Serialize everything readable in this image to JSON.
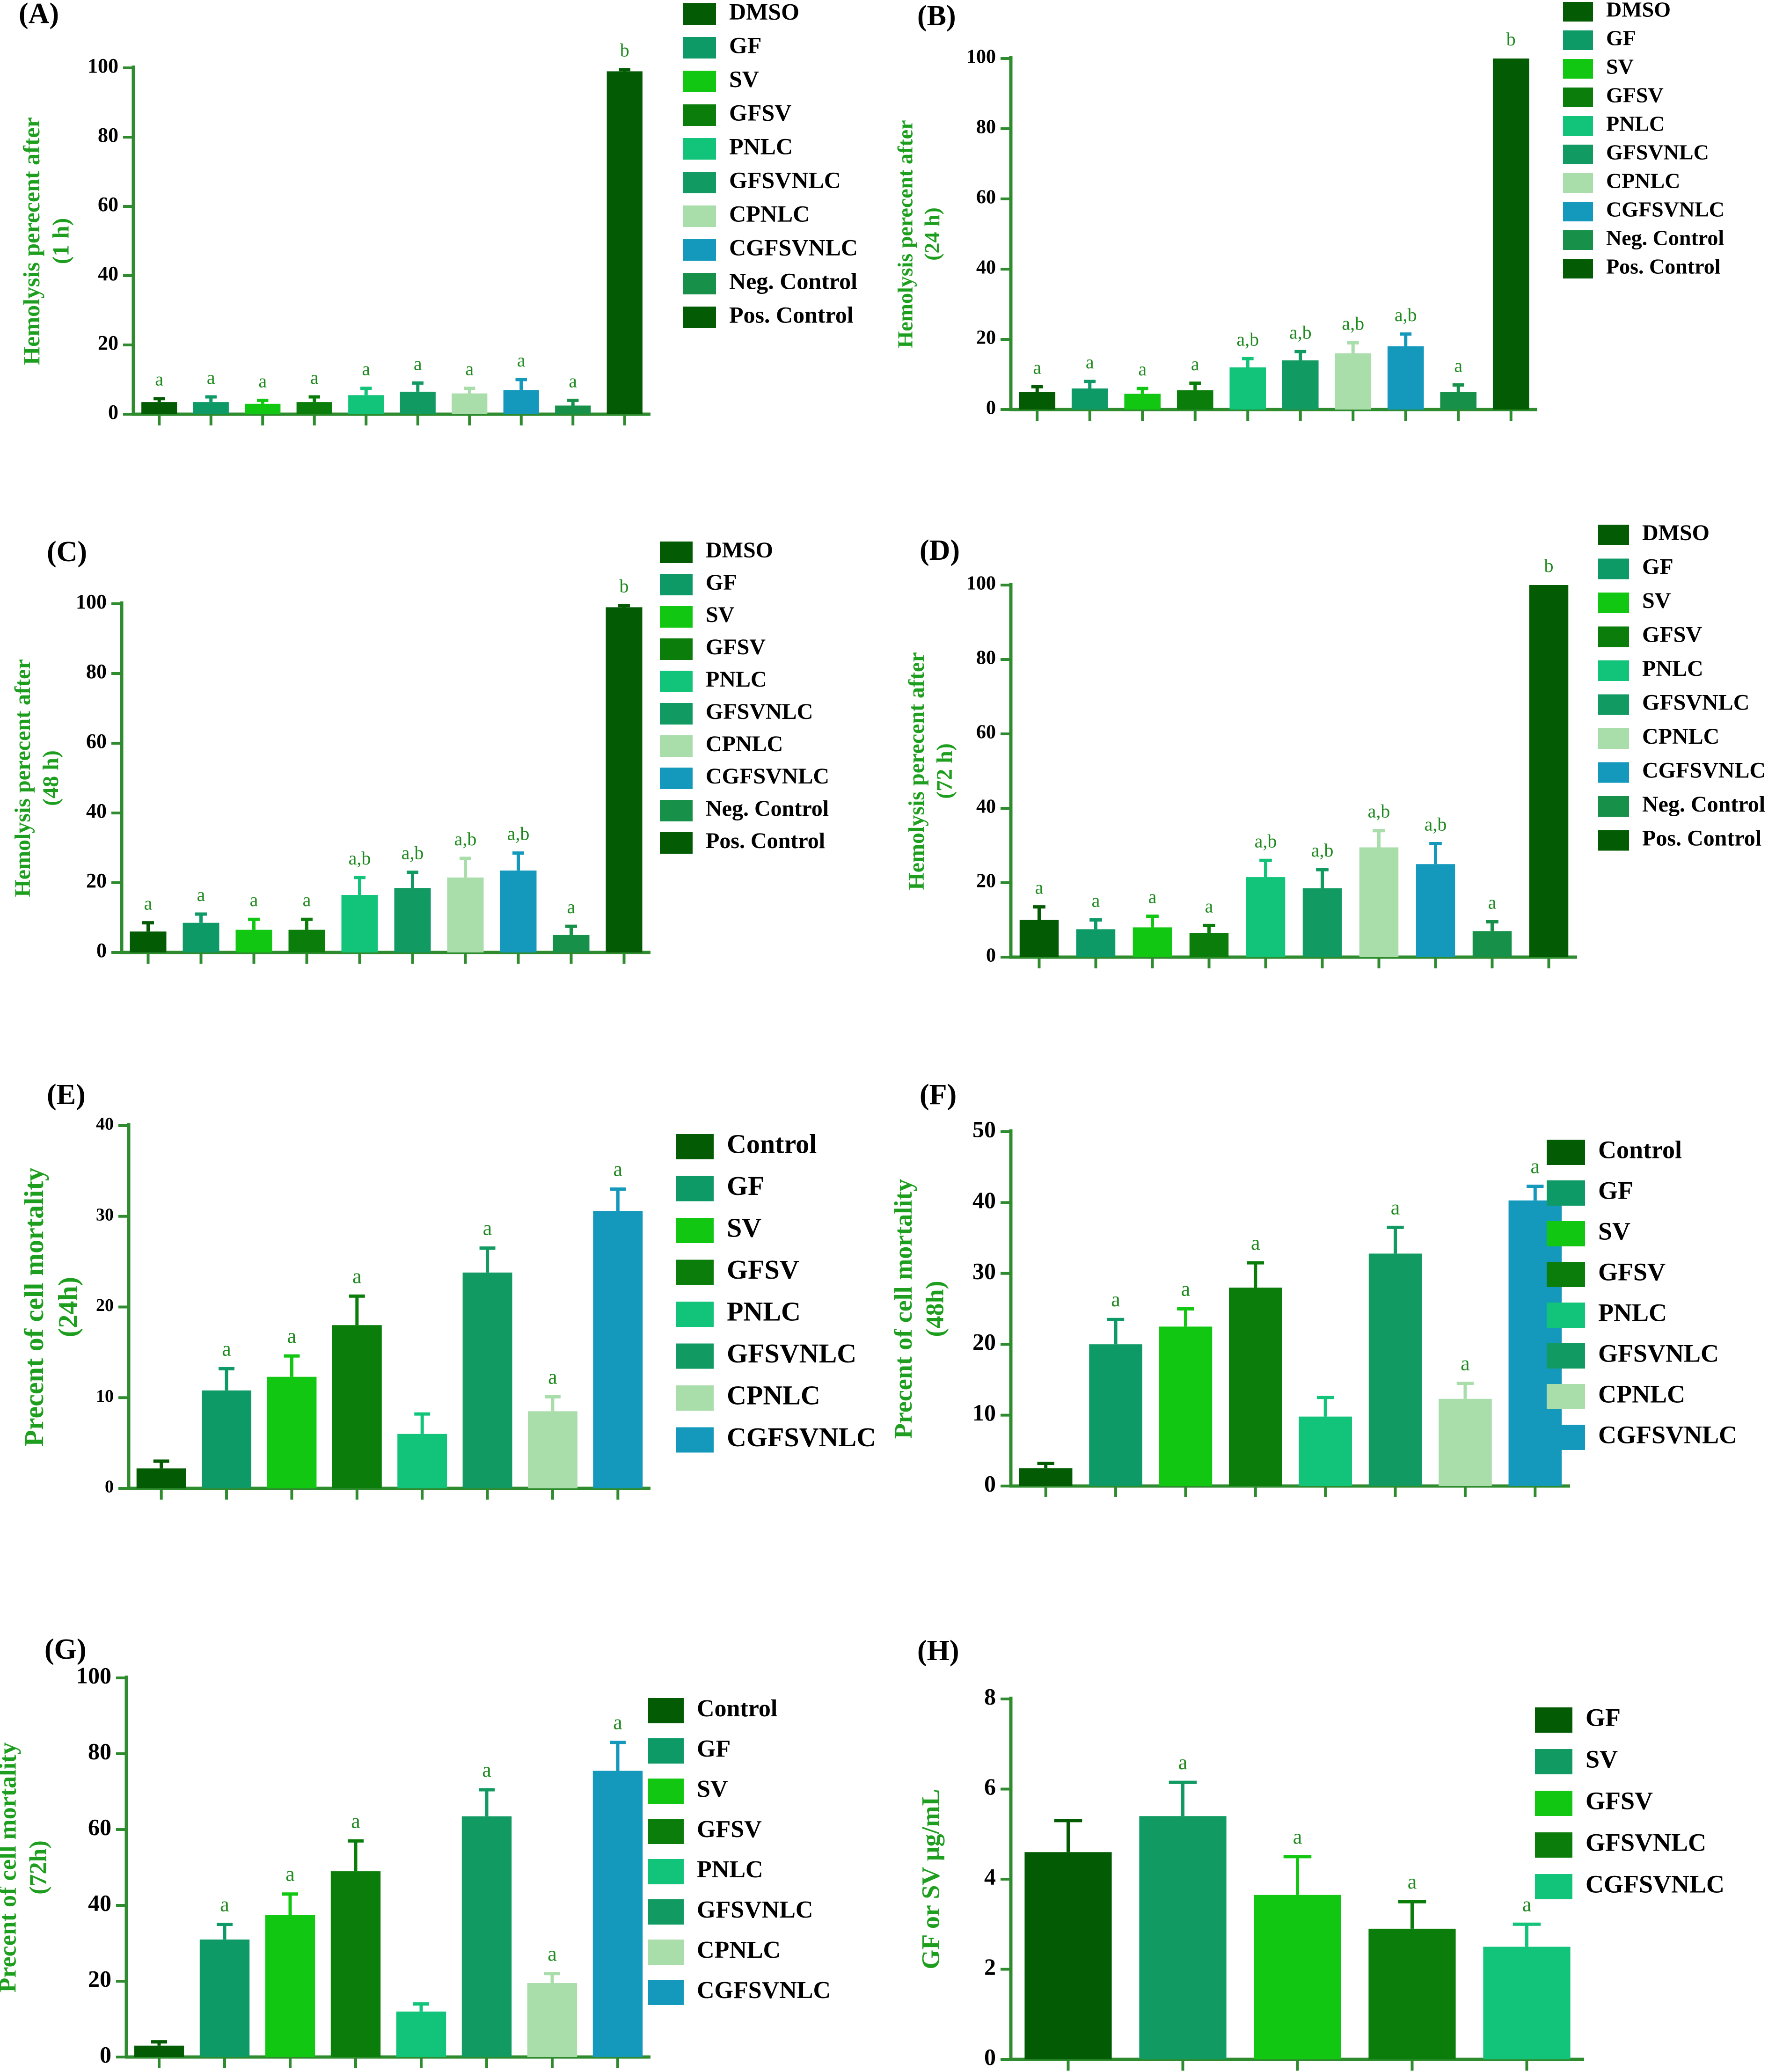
{
  "colors": {
    "axis": "#2E8B2E",
    "ylabel": "#1E9E1E",
    "letters": "#1F8A1F",
    "ticklabel": "#000000",
    "panel_label": "#000000",
    "DMSO": "#035B03",
    "Control": "#035B03",
    "GF": "#0E9A66",
    "SV": "#11C711",
    "GFSV": "#0A7D0A",
    "PNLC": "#12C37A",
    "GFSVNLC": "#129A63",
    "CPNLC": "#A9DDAA",
    "CGFSVNLC": "#1499BC",
    "Neg. Control": "#17914A",
    "Pos. Control": "#035B03"
  },
  "chart_data": [
    {
      "panel": "(A)",
      "type": "bar",
      "ylabel": [
        "Hemolysis perecent after",
        "(1 h)"
      ],
      "ylim": [
        0,
        100
      ],
      "yticks": [
        0,
        20,
        40,
        60,
        80,
        100
      ],
      "categories": [
        "DMSO",
        "GF",
        "SV",
        "GFSV",
        "PNLC",
        "GFSVNLC",
        "CPNLC",
        "CGFSVNLC",
        "Neg. Control",
        "Pos. Control"
      ],
      "values": [
        3.5,
        3.5,
        3.0,
        3.5,
        5.5,
        6.5,
        6.0,
        7.0,
        2.5,
        99
      ],
      "errors": [
        1.0,
        1.5,
        1.0,
        1.5,
        2.0,
        2.5,
        1.5,
        3.0,
        1.5,
        0.5
      ],
      "letters": [
        "a",
        "a",
        "a",
        "a",
        "a",
        "a",
        "a",
        "a",
        "a",
        "b"
      ],
      "legend": [
        "DMSO",
        "GF",
        "SV",
        "GFSV",
        "PNLC",
        "GFSVNLC",
        "CPNLC",
        "CGFSVNLC",
        "Neg. Control",
        "Pos. Control"
      ]
    },
    {
      "panel": "(B)",
      "type": "bar",
      "ylabel": [
        "Hemolysis perecent after",
        "(24 h)"
      ],
      "ylim": [
        0,
        100
      ],
      "yticks": [
        0,
        20,
        40,
        60,
        80,
        100
      ],
      "categories": [
        "DMSO",
        "GF",
        "SV",
        "GFSV",
        "PNLC",
        "GFSVNLC",
        "CPNLC",
        "CGFSVNLC",
        "Neg. Control",
        "Pos. Control"
      ],
      "values": [
        5.0,
        6.0,
        4.5,
        5.5,
        12.0,
        14.0,
        16.0,
        18.0,
        5.0,
        100
      ],
      "errors": [
        1.5,
        2.0,
        1.5,
        2.0,
        2.5,
        2.5,
        3.0,
        3.5,
        2.0,
        0
      ],
      "letters": [
        "a",
        "a",
        "a",
        "a",
        "a,b",
        "a,b",
        "a,b",
        "a,b",
        "a",
        "b"
      ],
      "legend": [
        "DMSO",
        "GF",
        "SV",
        "GFSV",
        "PNLC",
        "GFSVNLC",
        "CPNLC",
        "CGFSVNLC",
        "Neg. Control",
        "Pos. Control"
      ]
    },
    {
      "panel": "(C)",
      "type": "bar",
      "ylabel": [
        "Hemolysis perecent after",
        "(48 h)"
      ],
      "ylim": [
        0,
        100
      ],
      "yticks": [
        0,
        20,
        40,
        60,
        80,
        100
      ],
      "categories": [
        "DMSO",
        "GF",
        "SV",
        "GFSV",
        "PNLC",
        "GFSVNLC",
        "CPNLC",
        "CGFSVNLC",
        "Neg. Control",
        "Pos. Control"
      ],
      "values": [
        6.0,
        8.5,
        6.5,
        6.5,
        16.5,
        18.5,
        21.5,
        23.5,
        5.0,
        99
      ],
      "errors": [
        2.5,
        2.5,
        3.0,
        3.0,
        5.0,
        4.5,
        5.5,
        5.0,
        2.5,
        0.5
      ],
      "letters": [
        "a",
        "a",
        "a",
        "a",
        "a,b",
        "a,b",
        "a,b",
        "a,b",
        "a",
        "b"
      ],
      "legend": [
        "DMSO",
        "GF",
        "SV",
        "GFSV",
        "PNLC",
        "GFSVNLC",
        "CPNLC",
        "CGFSVNLC",
        "Neg. Control",
        "Pos. Control"
      ]
    },
    {
      "panel": "(D)",
      "type": "bar",
      "ylabel": [
        "Hemolysis perecent after",
        "(72 h)"
      ],
      "ylim": [
        0,
        100
      ],
      "yticks": [
        0,
        20,
        40,
        60,
        80,
        100
      ],
      "categories": [
        "DMSO",
        "GF",
        "SV",
        "GFSV",
        "PNLC",
        "GFSVNLC",
        "CPNLC",
        "CGFSVNLC",
        "Neg. Control",
        "Pos. Control"
      ],
      "values": [
        10.0,
        7.5,
        8.0,
        6.5,
        21.5,
        18.5,
        29.5,
        25.0,
        7.0,
        100
      ],
      "errors": [
        3.5,
        2.5,
        3.0,
        2.0,
        4.5,
        5.0,
        4.5,
        5.5,
        2.5,
        0
      ],
      "letters": [
        "a",
        "a",
        "a",
        "a",
        "a,b",
        "a,b",
        "a,b",
        "a,b",
        "a",
        "b"
      ],
      "legend": [
        "DMSO",
        "GF",
        "SV",
        "GFSV",
        "PNLC",
        "GFSVNLC",
        "CPNLC",
        "CGFSVNLC",
        "Neg. Control",
        "Pos. Control"
      ]
    },
    {
      "panel": "(E)",
      "type": "bar",
      "ylabel": [
        "Precent of cell mortality",
        "(24h)"
      ],
      "ylim": [
        0,
        40
      ],
      "yticks": [
        0,
        10,
        20,
        30,
        40
      ],
      "categories": [
        "Control",
        "GF",
        "SV",
        "GFSV",
        "PNLC",
        "GFSVNLC",
        "CPNLC",
        "CGFSVNLC"
      ],
      "values": [
        2.2,
        10.8,
        12.3,
        18.0,
        6.0,
        23.8,
        8.5,
        30.6
      ],
      "errors": [
        0.8,
        2.4,
        2.3,
        3.2,
        2.2,
        2.7,
        1.6,
        2.4
      ],
      "letters": [
        "",
        "a",
        "a",
        "a",
        "",
        "a",
        "a",
        "a"
      ],
      "legend": [
        "Control",
        "GF",
        "SV",
        "GFSV",
        "PNLC",
        "GFSVNLC",
        "CPNLC",
        "CGFSVNLC"
      ]
    },
    {
      "panel": "(F)",
      "type": "bar",
      "ylabel": [
        "Precent of cell mortality",
        "(48h)"
      ],
      "ylim": [
        0,
        50
      ],
      "yticks": [
        0,
        10,
        20,
        30,
        40,
        50
      ],
      "categories": [
        "Control",
        "GF",
        "SV",
        "GFSV",
        "PNLC",
        "GFSVNLC",
        "CPNLC",
        "CGFSVNLC"
      ],
      "values": [
        2.5,
        20.0,
        22.5,
        28.0,
        9.8,
        32.8,
        12.3,
        40.3
      ],
      "errors": [
        0.7,
        3.5,
        2.5,
        3.5,
        2.7,
        3.7,
        2.2,
        2.0
      ],
      "letters": [
        "",
        "a",
        "a",
        "a",
        "",
        "a",
        "a",
        "a"
      ],
      "legend": [
        "Control",
        "GF",
        "SV",
        "GFSV",
        "PNLC",
        "GFSVNLC",
        "CPNLC",
        "CGFSVNLC"
      ]
    },
    {
      "panel": "(G)",
      "type": "bar",
      "ylabel": [
        "Precent of cell mortality",
        "(72h)"
      ],
      "ylim": [
        0,
        100
      ],
      "yticks": [
        0,
        20,
        40,
        60,
        80,
        100
      ],
      "categories": [
        "Control",
        "GF",
        "SV",
        "GFSV",
        "PNLC",
        "GFSVNLC",
        "CPNLC",
        "CGFSVNLC"
      ],
      "values": [
        3.0,
        31.0,
        37.5,
        49.0,
        12.0,
        63.5,
        19.5,
        75.5
      ],
      "errors": [
        1.0,
        4.0,
        5.5,
        8.0,
        2.0,
        7.0,
        2.5,
        7.5
      ],
      "letters": [
        "",
        "a",
        "a",
        "a",
        "",
        "a",
        "a",
        "a"
      ],
      "legend": [
        "Control",
        "GF",
        "SV",
        "GFSV",
        "PNLC",
        "GFSVNLC",
        "CPNLC",
        "CGFSVNLC"
      ]
    },
    {
      "panel": "(H)",
      "type": "bar",
      "ylabel": [
        "GF or SV μg/mL"
      ],
      "ylim": [
        0,
        8
      ],
      "yticks": [
        0,
        2,
        4,
        6,
        8
      ],
      "categories": [
        "GF",
        "SV",
        "GFSV",
        "GFSVNLC",
        "CGFSVNLC"
      ],
      "values": [
        4.6,
        5.4,
        3.65,
        2.9,
        2.5
      ],
      "errors": [
        0.7,
        0.75,
        0.85,
        0.6,
        0.5
      ],
      "letters": [
        "",
        "a",
        "a",
        "a",
        "a"
      ],
      "bar_colors": [
        "#035B03",
        "#129A63",
        "#11C711",
        "#0A7D0A",
        "#12C37A"
      ],
      "legend": [
        "GF",
        "SV",
        "GFSV",
        "GFSVNLC",
        "CGFSVNLC"
      ]
    }
  ]
}
